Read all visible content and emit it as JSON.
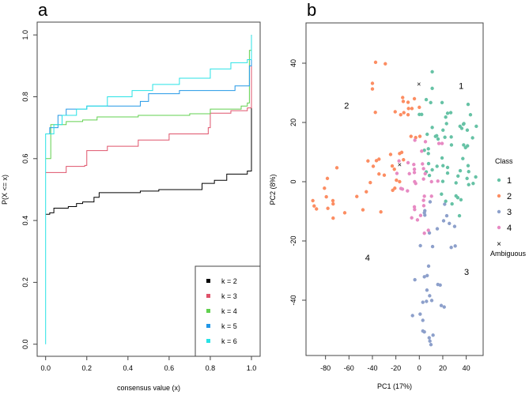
{
  "chart_data": [
    {
      "type": "line",
      "panel_label": "a",
      "xlabel": "consensus value (x)",
      "ylabel": "P(X <= x)",
      "xlim": [
        0,
        1
      ],
      "ylim": [
        0,
        1
      ],
      "xticks": [
        "0.0",
        "0.2",
        "0.4",
        "0.6",
        "0.8",
        "1.0"
      ],
      "yticks": [
        "0.0",
        "0.2",
        "0.4",
        "0.6",
        "0.8",
        "1.0"
      ],
      "legend_position": "bottom-right",
      "series": [
        {
          "name": "k = 2",
          "color": "#000000",
          "points": [
            [
              0,
              0.42
            ],
            [
              0.02,
              0.425
            ],
            [
              0.04,
              0.44
            ],
            [
              0.11,
              0.445
            ],
            [
              0.15,
              0.455
            ],
            [
              0.18,
              0.46
            ],
            [
              0.235,
              0.475
            ],
            [
              0.26,
              0.49
            ],
            [
              0.46,
              0.495
            ],
            [
              0.55,
              0.5
            ],
            [
              0.74,
              0.5
            ],
            [
              0.76,
              0.52
            ],
            [
              0.82,
              0.53
            ],
            [
              0.88,
              0.55
            ],
            [
              0.98,
              0.56
            ],
            [
              1.0,
              1.0
            ]
          ]
        },
        {
          "name": "k = 3",
          "color": "#DF536B",
          "points": [
            [
              0,
              0.555
            ],
            [
              0.1,
              0.575
            ],
            [
              0.19,
              0.578
            ],
            [
              0.2,
              0.626
            ],
            [
              0.3,
              0.64
            ],
            [
              0.45,
              0.66
            ],
            [
              0.6,
              0.68
            ],
            [
              0.79,
              0.7
            ],
            [
              0.8,
              0.747
            ],
            [
              0.9,
              0.755
            ],
            [
              0.98,
              0.764
            ],
            [
              1.0,
              1.0
            ]
          ]
        },
        {
          "name": "k = 4",
          "color": "#61D04F",
          "points": [
            [
              0,
              0.6
            ],
            [
              0.025,
              0.71
            ],
            [
              0.1,
              0.72
            ],
            [
              0.18,
              0.725
            ],
            [
              0.25,
              0.735
            ],
            [
              0.45,
              0.74
            ],
            [
              0.7,
              0.745
            ],
            [
              0.8,
              0.76
            ],
            [
              0.95,
              0.77
            ],
            [
              0.98,
              0.78
            ],
            [
              0.99,
              0.95
            ],
            [
              1.0,
              1.0
            ]
          ]
        },
        {
          "name": "k = 5",
          "color": "#2297E6",
          "points": [
            [
              0,
              0.68
            ],
            [
              0.02,
              0.7
            ],
            [
              0.06,
              0.74
            ],
            [
              0.1,
              0.76
            ],
            [
              0.2,
              0.77
            ],
            [
              0.46,
              0.785
            ],
            [
              0.5,
              0.81
            ],
            [
              0.65,
              0.82
            ],
            [
              0.92,
              0.835
            ],
            [
              0.99,
              0.9
            ],
            [
              1.0,
              1.0
            ]
          ]
        },
        {
          "name": "k = 6",
          "color": "#28E2E5",
          "points": [
            [
              0,
              0.0
            ],
            [
              0,
              0.68
            ],
            [
              0.04,
              0.71
            ],
            [
              0.08,
              0.74
            ],
            [
              0.15,
              0.76
            ],
            [
              0.2,
              0.77
            ],
            [
              0.3,
              0.8
            ],
            [
              0.42,
              0.82
            ],
            [
              0.52,
              0.84
            ],
            [
              0.65,
              0.86
            ],
            [
              0.8,
              0.89
            ],
            [
              0.9,
              0.91
            ],
            [
              0.98,
              0.92
            ],
            [
              1.0,
              1.0
            ]
          ]
        }
      ]
    },
    {
      "type": "scatter",
      "panel_label": "b",
      "xlabel": "PC1 (17%)",
      "ylabel": "PC2 (8%)",
      "xlim": [
        -95,
        55
      ],
      "ylim": [
        -59,
        53
      ],
      "xticks": [
        "-80",
        "-60",
        "-40",
        "-20",
        "0",
        "20",
        "40"
      ],
      "yticks": [
        "-40",
        "-20",
        "0",
        "20",
        "40"
      ],
      "legend_title": "Class",
      "legend_position": "right",
      "ambiguous_label": "Ambiguous",
      "ambiguous_symbol": "×",
      "series": [
        {
          "name": "1",
          "color": "#66C2A5",
          "label_at": [
            35.7,
            32.4
          ],
          "points": [
            [
              11,
              37.1
            ],
            [
              11,
              31.5
            ],
            [
              5.9,
              27.7
            ],
            [
              9.7,
              26.7
            ],
            [
              19.4,
              26.7
            ],
            [
              41.6,
              26.1
            ],
            [
              0,
              22.7
            ],
            [
              2,
              22.7
            ],
            [
              24.1,
              23.1
            ],
            [
              26.8,
              23.3
            ],
            [
              43.6,
              22.6
            ],
            [
              22.5,
              21.8
            ],
            [
              23.2,
              19.6
            ],
            [
              34.7,
              18.7
            ],
            [
              37.6,
              19.4
            ],
            [
              36.2,
              18
            ],
            [
              38,
              19.6
            ],
            [
              40.9,
              17.4
            ],
            [
              48.6,
              18.7
            ],
            [
              11,
              18.3
            ],
            [
              20.2,
              17.4
            ],
            [
              6.7,
              16
            ],
            [
              13.8,
              15.3
            ],
            [
              14.8,
              15.5
            ],
            [
              16,
              14.4
            ],
            [
              21.8,
              15
            ],
            [
              27.2,
              15.1
            ],
            [
              45.4,
              14.8
            ],
            [
              27.4,
              12.4
            ],
            [
              37.8,
              12.4
            ],
            [
              39.4,
              11.5
            ],
            [
              41.1,
              12.1
            ],
            [
              7.7,
              11.1
            ],
            [
              4.3,
              10.6
            ],
            [
              7.7,
              9.5
            ],
            [
              19.4,
              8
            ],
            [
              37.1,
              7.8
            ],
            [
              7.9,
              6.1
            ],
            [
              15.1,
              5.2
            ],
            [
              20.2,
              5.4
            ],
            [
              24.1,
              4.8
            ],
            [
              41.6,
              5.4
            ],
            [
              11,
              4
            ],
            [
              5.9,
              3.3
            ],
            [
              24.1,
              2.9
            ],
            [
              34.9,
              3.7
            ],
            [
              42.1,
              3.4
            ],
            [
              48.1,
              1.6
            ],
            [
              33,
              1.9
            ],
            [
              40.7,
              1.1
            ],
            [
              45.9,
              -0.6
            ],
            [
              42.1,
              -1
            ],
            [
              8.6,
              2.1
            ],
            [
              20,
              0.1
            ],
            [
              31.3,
              -0.4
            ],
            [
              18.9,
              -4.2
            ],
            [
              31.3,
              -4.8
            ],
            [
              32.8,
              -5.4
            ],
            [
              35.5,
              -6.1
            ],
            [
              22.5,
              -6.6
            ],
            [
              27.9,
              -7.5
            ],
            [
              34.2,
              -11.5
            ]
          ]
        },
        {
          "name": "2",
          "color": "#FC8D62",
          "label_at": [
            -62,
            25.8
          ],
          "points": [
            [
              -37.3,
              40.3
            ],
            [
              -29,
              39.8
            ],
            [
              -40,
              33.2
            ],
            [
              -40,
              31.3
            ],
            [
              -37.5,
              23.4
            ],
            [
              -14.2,
              28.4
            ],
            [
              -13.7,
              27.1
            ],
            [
              -9.6,
              26.8
            ],
            [
              -4.2,
              28
            ],
            [
              -9.2,
              24.7
            ],
            [
              -6.3,
              24.7
            ],
            [
              0,
              25.1
            ],
            [
              -20.6,
              23.6
            ],
            [
              -15.9,
              22.6
            ],
            [
              -13.2,
              23.3
            ],
            [
              -9.6,
              22.6
            ],
            [
              -7.1,
              15.3
            ],
            [
              -3.1,
              14.9
            ],
            [
              0.5,
              15.3
            ],
            [
              -24.5,
              9.2
            ],
            [
              -16.8,
              9.5
            ],
            [
              -15,
              9.9
            ],
            [
              -13.5,
              7.4
            ],
            [
              -43.8,
              7
            ],
            [
              -36.6,
              7.1
            ],
            [
              -34.4,
              7.6
            ],
            [
              -39.3,
              5.2
            ],
            [
              -70.3,
              4.7
            ],
            [
              -23.1,
              5.3
            ],
            [
              -21.3,
              4.2
            ],
            [
              -34.4,
              2.6
            ],
            [
              -29.9,
              2.2
            ],
            [
              -78.4,
              1.1
            ],
            [
              -19.5,
              0.5
            ],
            [
              -16.8,
              0
            ],
            [
              -41.8,
              -0.3
            ],
            [
              -80.9,
              -2.2
            ],
            [
              -20.9,
              -2.2
            ],
            [
              -22.7,
              -2.9
            ],
            [
              -45.2,
              -3.4
            ],
            [
              -79.3,
              -5.1
            ],
            [
              -53.3,
              -5
            ],
            [
              -90.8,
              -6.4
            ],
            [
              -73.7,
              -6.4
            ],
            [
              -89.7,
              -8.2
            ],
            [
              -87.7,
              -9.2
            ],
            [
              -78,
              -9
            ],
            [
              -73.5,
              -7.5
            ],
            [
              -73.5,
              -12.3
            ],
            [
              -63.6,
              -10.5
            ],
            [
              -48.1,
              -9.5
            ],
            [
              -32.8,
              -10.2
            ]
          ],
          "ambiguous": [
            [
              -0.4,
              33
            ],
            [
              -16.8,
              5.8
            ]
          ]
        },
        {
          "name": "3",
          "color": "#8DA0CB",
          "label_at": [
            40.3,
            -30.4
          ],
          "points": [
            [
              9.2,
              -6.8
            ],
            [
              21.6,
              -7.6
            ],
            [
              4.7,
              -9.8
            ],
            [
              4.3,
              -10.5
            ],
            [
              4.7,
              -11.3
            ],
            [
              23.4,
              -11.5
            ],
            [
              20.7,
              -13.2
            ],
            [
              25.6,
              -14.1
            ],
            [
              30.1,
              -15.1
            ],
            [
              15.3,
              -15.9
            ],
            [
              8.6,
              -17.3
            ],
            [
              0.9,
              -21.6
            ],
            [
              11.3,
              -21.9
            ],
            [
              27.2,
              -22.2
            ],
            [
              30.6,
              -21.7
            ],
            [
              7.9,
              -28.5
            ],
            [
              -3.8,
              -33.1
            ],
            [
              4.3,
              -32.1
            ],
            [
              6.7,
              -31.7
            ],
            [
              15.8,
              -34.7
            ],
            [
              17.8,
              -34.9
            ],
            [
              6.5,
              -36.6
            ],
            [
              8.8,
              -38.5
            ],
            [
              3,
              -40.7
            ],
            [
              6.1,
              -40.4
            ],
            [
              10.6,
              -40.1
            ],
            [
              18.7,
              -41.8
            ],
            [
              21.2,
              -42.3
            ],
            [
              -5.8,
              -45.2
            ],
            [
              0.7,
              -44.7
            ],
            [
              3,
              -46.8
            ],
            [
              3,
              -50.4
            ],
            [
              4.3,
              -50.7
            ],
            [
              8.4,
              -52.7
            ],
            [
              11.7,
              -51.8
            ],
            [
              9,
              -53.8
            ],
            [
              9.9,
              -55
            ]
          ]
        },
        {
          "name": "4",
          "color": "#E78AC3",
          "label_at": [
            -44.2,
            -25.6
          ],
          "points": [
            [
              -3.8,
              14
            ],
            [
              5.2,
              13.5
            ],
            [
              16.7,
              12.9
            ],
            [
              19.4,
              12.9
            ],
            [
              2,
              10.3
            ],
            [
              -17.3,
              7
            ],
            [
              -9.6,
              6.4
            ],
            [
              -4.7,
              5.8
            ],
            [
              2.7,
              6
            ],
            [
              -19.1,
              2.8
            ],
            [
              -8.5,
              2.7
            ],
            [
              -4.2,
              4.2
            ],
            [
              -4.2,
              3.1
            ],
            [
              3.6,
              4.4
            ],
            [
              5,
              2.7
            ],
            [
              3.6,
              0.9
            ],
            [
              10.4,
              0
            ],
            [
              15.8,
              0.2
            ],
            [
              -4,
              0
            ],
            [
              -3.1,
              -0.6
            ],
            [
              -15.7,
              -2.3
            ],
            [
              -14.4,
              -2.5
            ],
            [
              -10.1,
              -3.1
            ],
            [
              4.3,
              -4.9
            ],
            [
              10.4,
              -4.9
            ],
            [
              3.6,
              -6.3
            ],
            [
              3.8,
              -8.1
            ],
            [
              -4.2,
              -8.5
            ],
            [
              -4,
              -9.4
            ],
            [
              -6.5,
              -12.2
            ],
            [
              -1.6,
              -12.9
            ],
            [
              1.1,
              -11.4
            ],
            [
              4.3,
              -17.4
            ],
            [
              7.7,
              -16.4
            ]
          ]
        }
      ]
    }
  ]
}
